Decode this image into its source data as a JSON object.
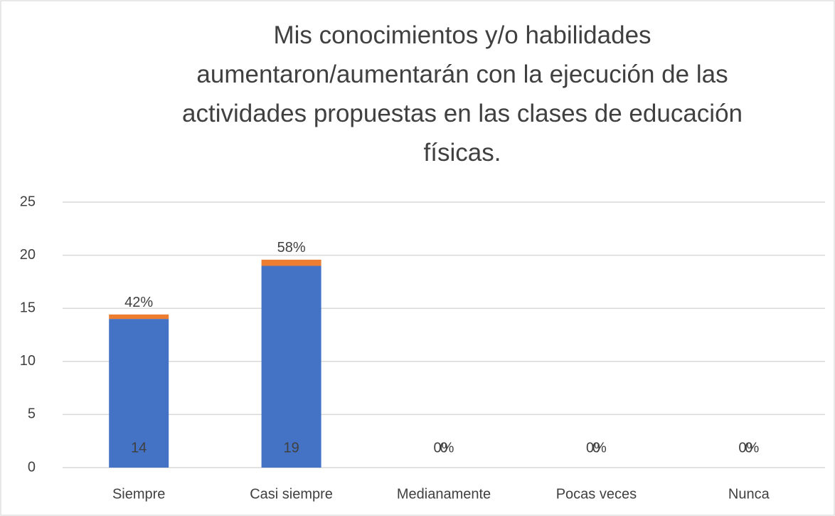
{
  "chart_data": {
    "type": "stacked_bar",
    "title": "Mis conocimientos y/o habilidades aumentaron/aumentarán con la ejecución de las actividades propuestas en las clases de educación físicas.",
    "categories": [
      "Siempre",
      "Casi siempre",
      "Medianamente",
      "Pocas veces",
      "Nunca"
    ],
    "series": [
      {
        "color": "#4472c4",
        "values": [
          14,
          19,
          0,
          0,
          0
        ],
        "value_labels": [
          "14",
          "19",
          "0",
          "0",
          "0"
        ]
      },
      {
        "color": "#ed7d31",
        "values": [
          0.42,
          0.58,
          0,
          0,
          0
        ],
        "value_labels": [
          "42%",
          "58%",
          "0%",
          "0%",
          "0%"
        ]
      }
    ],
    "ylim": [
      0,
      25
    ],
    "yticks": [
      0,
      5,
      10,
      15,
      20,
      25
    ],
    "grid": true
  }
}
